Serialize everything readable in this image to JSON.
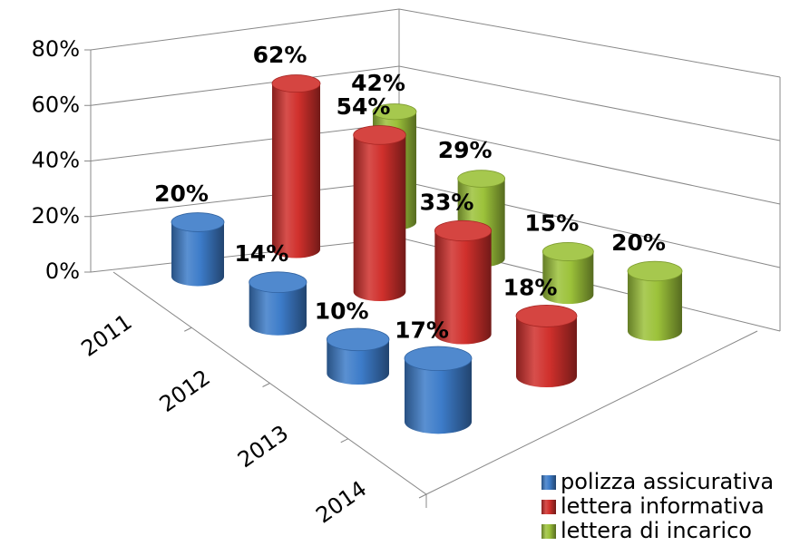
{
  "chart_data": {
    "type": "bar3d",
    "categories": [
      "2011",
      "2012",
      "2013",
      "2014"
    ],
    "series": [
      {
        "name": "polizza assicurativa",
        "color": "#3d7cc9",
        "values": [
          20,
          14,
          10,
          17
        ],
        "value_labels": [
          "20%",
          "14%",
          "10%",
          "17%"
        ]
      },
      {
        "name": "lettera informativa",
        "color": "#d0302c",
        "values": [
          62,
          54,
          33,
          18
        ],
        "value_labels": [
          "62%",
          "54%",
          "33%",
          "18%"
        ]
      },
      {
        "name": "lettera di incarico",
        "color": "#9cc23a",
        "values": [
          42,
          29,
          15,
          20
        ],
        "value_labels": [
          "42%",
          "29%",
          "15%",
          "20%"
        ]
      }
    ],
    "ylim": [
      0,
      80
    ],
    "yticks": [
      {
        "value": 0,
        "label": "0%"
      },
      {
        "value": 20,
        "label": "20%"
      },
      {
        "value": 40,
        "label": "40%"
      },
      {
        "value": 60,
        "label": "60%"
      },
      {
        "value": 80,
        "label": "80%"
      }
    ],
    "grid": true,
    "legend": "bottom-right"
  }
}
